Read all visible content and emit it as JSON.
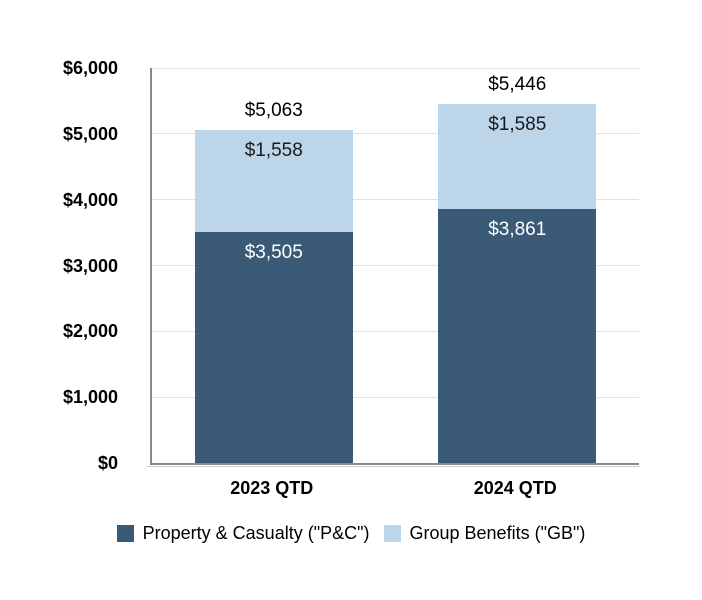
{
  "chart_data": {
    "type": "bar",
    "stacked": true,
    "categories": [
      "2023 QTD",
      "2024 QTD"
    ],
    "series": [
      {
        "name": "Property & Casualty (\"P&C\")",
        "color": "#3a5a78",
        "label_color": "#ffffff",
        "values": [
          3505,
          3861
        ],
        "labels": [
          "$3,505",
          "$3,861"
        ]
      },
      {
        "name": "Group Benefits (\"GB\")",
        "color": "#bcd5e9",
        "label_color": "#1a1a1a",
        "values": [
          1558,
          1585
        ],
        "labels": [
          "$1,558",
          "$1,585"
        ]
      }
    ],
    "totals": {
      "values": [
        5063,
        5446
      ],
      "labels": [
        "$5,063",
        "$5,446"
      ]
    },
    "y_axis": {
      "min": 0,
      "max": 6000,
      "tick_step": 1000,
      "ticks": [
        {
          "value": 0,
          "label": "$0"
        },
        {
          "value": 1000,
          "label": "$1,000"
        },
        {
          "value": 2000,
          "label": "$2,000"
        },
        {
          "value": 3000,
          "label": "$3,000"
        },
        {
          "value": 4000,
          "label": "$4,000"
        },
        {
          "value": 5000,
          "label": "$5,000"
        },
        {
          "value": 6000,
          "label": "$6,000"
        }
      ]
    },
    "grid": true,
    "legend_position": "bottom"
  },
  "colors": {
    "gridline": "#e2e2e2",
    "axis_line": "#8a8a8a",
    "text": "#000000",
    "background": "#ffffff"
  }
}
